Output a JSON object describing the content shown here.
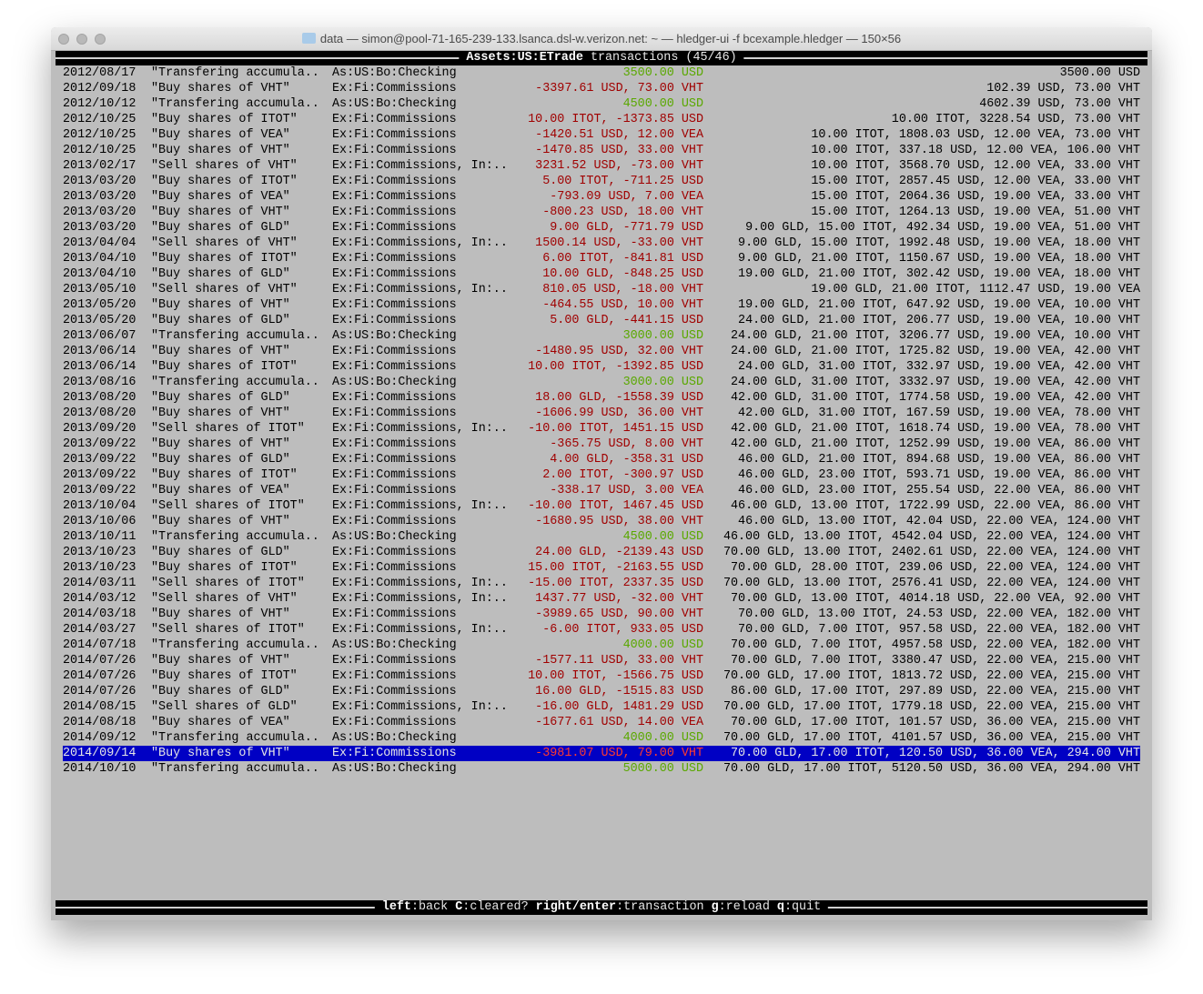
{
  "window": {
    "title": "data — simon@pool-71-165-239-133.lsanca.dsl-w.verizon.net: ~ — hledger-ui -f bcexample.hledger — 150×56"
  },
  "header": {
    "account": "Assets:US:ETrade",
    "suffix": " transactions (45/46)"
  },
  "colors": {
    "positive": "#5aa800",
    "negative": "#a00000",
    "selected_bg": "#0000c4",
    "selected_negative": "#ff3b2f",
    "background": "#bdbdbd"
  },
  "selected_index": 44,
  "columns": [
    "date",
    "description",
    "account",
    "amount",
    "balance"
  ],
  "rows": [
    [
      "2012/08/17",
      "\"Transfering accumula..",
      "As:US:Bo:Checking",
      "3500.00 USD",
      "3500.00 USD"
    ],
    [
      "2012/09/18",
      "\"Buy shares of VHT\"",
      "Ex:Fi:Commissions",
      "-3397.61 USD, 73.00 VHT",
      "102.39 USD, 73.00 VHT"
    ],
    [
      "2012/10/12",
      "\"Transfering accumula..",
      "As:US:Bo:Checking",
      "4500.00 USD",
      "4602.39 USD, 73.00 VHT"
    ],
    [
      "2012/10/25",
      "\"Buy shares of ITOT\"",
      "Ex:Fi:Commissions",
      "10.00 ITOT, -1373.85 USD",
      "10.00 ITOT, 3228.54 USD, 73.00 VHT"
    ],
    [
      "2012/10/25",
      "\"Buy shares of VEA\"",
      "Ex:Fi:Commissions",
      "-1420.51 USD, 12.00 VEA",
      "10.00 ITOT, 1808.03 USD, 12.00 VEA, 73.00 VHT"
    ],
    [
      "2012/10/25",
      "\"Buy shares of VHT\"",
      "Ex:Fi:Commissions",
      "-1470.85 USD, 33.00 VHT",
      "10.00 ITOT, 337.18 USD, 12.00 VEA, 106.00 VHT"
    ],
    [
      "2013/02/17",
      "\"Sell shares of VHT\"",
      "Ex:Fi:Commissions, In:..",
      "3231.52 USD, -73.00 VHT",
      "10.00 ITOT, 3568.70 USD, 12.00 VEA, 33.00 VHT"
    ],
    [
      "2013/03/20",
      "\"Buy shares of ITOT\"",
      "Ex:Fi:Commissions",
      "5.00 ITOT, -711.25 USD",
      "15.00 ITOT, 2857.45 USD, 12.00 VEA, 33.00 VHT"
    ],
    [
      "2013/03/20",
      "\"Buy shares of VEA\"",
      "Ex:Fi:Commissions",
      "-793.09 USD, 7.00 VEA",
      "15.00 ITOT, 2064.36 USD, 19.00 VEA, 33.00 VHT"
    ],
    [
      "2013/03/20",
      "\"Buy shares of VHT\"",
      "Ex:Fi:Commissions",
      "-800.23 USD, 18.00 VHT",
      "15.00 ITOT, 1264.13 USD, 19.00 VEA, 51.00 VHT"
    ],
    [
      "2013/03/20",
      "\"Buy shares of GLD\"",
      "Ex:Fi:Commissions",
      "9.00 GLD, -771.79 USD",
      "9.00 GLD, 15.00 ITOT, 492.34 USD, 19.00 VEA, 51.00 VHT"
    ],
    [
      "2013/04/04",
      "\"Sell shares of VHT\"",
      "Ex:Fi:Commissions, In:..",
      "1500.14 USD, -33.00 VHT",
      "9.00 GLD, 15.00 ITOT, 1992.48 USD, 19.00 VEA, 18.00 VHT"
    ],
    [
      "2013/04/10",
      "\"Buy shares of ITOT\"",
      "Ex:Fi:Commissions",
      "6.00 ITOT, -841.81 USD",
      "9.00 GLD, 21.00 ITOT, 1150.67 USD, 19.00 VEA, 18.00 VHT"
    ],
    [
      "2013/04/10",
      "\"Buy shares of GLD\"",
      "Ex:Fi:Commissions",
      "10.00 GLD, -848.25 USD",
      "19.00 GLD, 21.00 ITOT, 302.42 USD, 19.00 VEA, 18.00 VHT"
    ],
    [
      "2013/05/10",
      "\"Sell shares of VHT\"",
      "Ex:Fi:Commissions, In:..",
      "810.05 USD, -18.00 VHT",
      "19.00 GLD, 21.00 ITOT, 1112.47 USD, 19.00 VEA"
    ],
    [
      "2013/05/20",
      "\"Buy shares of VHT\"",
      "Ex:Fi:Commissions",
      "-464.55 USD, 10.00 VHT",
      "19.00 GLD, 21.00 ITOT, 647.92 USD, 19.00 VEA, 10.00 VHT"
    ],
    [
      "2013/05/20",
      "\"Buy shares of GLD\"",
      "Ex:Fi:Commissions",
      "5.00 GLD, -441.15 USD",
      "24.00 GLD, 21.00 ITOT, 206.77 USD, 19.00 VEA, 10.00 VHT"
    ],
    [
      "2013/06/07",
      "\"Transfering accumula..",
      "As:US:Bo:Checking",
      "3000.00 USD",
      "24.00 GLD, 21.00 ITOT, 3206.77 USD, 19.00 VEA, 10.00 VHT"
    ],
    [
      "2013/06/14",
      "\"Buy shares of VHT\"",
      "Ex:Fi:Commissions",
      "-1480.95 USD, 32.00 VHT",
      "24.00 GLD, 21.00 ITOT, 1725.82 USD, 19.00 VEA, 42.00 VHT"
    ],
    [
      "2013/06/14",
      "\"Buy shares of ITOT\"",
      "Ex:Fi:Commissions",
      "10.00 ITOT, -1392.85 USD",
      "24.00 GLD, 31.00 ITOT, 332.97 USD, 19.00 VEA, 42.00 VHT"
    ],
    [
      "2013/08/16",
      "\"Transfering accumula..",
      "As:US:Bo:Checking",
      "3000.00 USD",
      "24.00 GLD, 31.00 ITOT, 3332.97 USD, 19.00 VEA, 42.00 VHT"
    ],
    [
      "2013/08/20",
      "\"Buy shares of GLD\"",
      "Ex:Fi:Commissions",
      "18.00 GLD, -1558.39 USD",
      "42.00 GLD, 31.00 ITOT, 1774.58 USD, 19.00 VEA, 42.00 VHT"
    ],
    [
      "2013/08/20",
      "\"Buy shares of VHT\"",
      "Ex:Fi:Commissions",
      "-1606.99 USD, 36.00 VHT",
      "42.00 GLD, 31.00 ITOT, 167.59 USD, 19.00 VEA, 78.00 VHT"
    ],
    [
      "2013/09/20",
      "\"Sell shares of ITOT\"",
      "Ex:Fi:Commissions, In:..",
      "-10.00 ITOT, 1451.15 USD",
      "42.00 GLD, 21.00 ITOT, 1618.74 USD, 19.00 VEA, 78.00 VHT"
    ],
    [
      "2013/09/22",
      "\"Buy shares of VHT\"",
      "Ex:Fi:Commissions",
      "-365.75 USD, 8.00 VHT",
      "42.00 GLD, 21.00 ITOT, 1252.99 USD, 19.00 VEA, 86.00 VHT"
    ],
    [
      "2013/09/22",
      "\"Buy shares of GLD\"",
      "Ex:Fi:Commissions",
      "4.00 GLD, -358.31 USD",
      "46.00 GLD, 21.00 ITOT, 894.68 USD, 19.00 VEA, 86.00 VHT"
    ],
    [
      "2013/09/22",
      "\"Buy shares of ITOT\"",
      "Ex:Fi:Commissions",
      "2.00 ITOT, -300.97 USD",
      "46.00 GLD, 23.00 ITOT, 593.71 USD, 19.00 VEA, 86.00 VHT"
    ],
    [
      "2013/09/22",
      "\"Buy shares of VEA\"",
      "Ex:Fi:Commissions",
      "-338.17 USD, 3.00 VEA",
      "46.00 GLD, 23.00 ITOT, 255.54 USD, 22.00 VEA, 86.00 VHT"
    ],
    [
      "2013/10/04",
      "\"Sell shares of ITOT\"",
      "Ex:Fi:Commissions, In:..",
      "-10.00 ITOT, 1467.45 USD",
      "46.00 GLD, 13.00 ITOT, 1722.99 USD, 22.00 VEA, 86.00 VHT"
    ],
    [
      "2013/10/06",
      "\"Buy shares of VHT\"",
      "Ex:Fi:Commissions",
      "-1680.95 USD, 38.00 VHT",
      "46.00 GLD, 13.00 ITOT, 42.04 USD, 22.00 VEA, 124.00 VHT"
    ],
    [
      "2013/10/11",
      "\"Transfering accumula..",
      "As:US:Bo:Checking",
      "4500.00 USD",
      "46.00 GLD, 13.00 ITOT, 4542.04 USD, 22.00 VEA, 124.00 VHT"
    ],
    [
      "2013/10/23",
      "\"Buy shares of GLD\"",
      "Ex:Fi:Commissions",
      "24.00 GLD, -2139.43 USD",
      "70.00 GLD, 13.00 ITOT, 2402.61 USD, 22.00 VEA, 124.00 VHT"
    ],
    [
      "2013/10/23",
      "\"Buy shares of ITOT\"",
      "Ex:Fi:Commissions",
      "15.00 ITOT, -2163.55 USD",
      "70.00 GLD, 28.00 ITOT, 239.06 USD, 22.00 VEA, 124.00 VHT"
    ],
    [
      "2014/03/11",
      "\"Sell shares of ITOT\"",
      "Ex:Fi:Commissions, In:..",
      "-15.00 ITOT, 2337.35 USD",
      "70.00 GLD, 13.00 ITOT, 2576.41 USD, 22.00 VEA, 124.00 VHT"
    ],
    [
      "2014/03/12",
      "\"Sell shares of VHT\"",
      "Ex:Fi:Commissions, In:..",
      "1437.77 USD, -32.00 VHT",
      "70.00 GLD, 13.00 ITOT, 4014.18 USD, 22.00 VEA, 92.00 VHT"
    ],
    [
      "2014/03/18",
      "\"Buy shares of VHT\"",
      "Ex:Fi:Commissions",
      "-3989.65 USD, 90.00 VHT",
      "70.00 GLD, 13.00 ITOT, 24.53 USD, 22.00 VEA, 182.00 VHT"
    ],
    [
      "2014/03/27",
      "\"Sell shares of ITOT\"",
      "Ex:Fi:Commissions, In:..",
      "-6.00 ITOT, 933.05 USD",
      "70.00 GLD, 7.00 ITOT, 957.58 USD, 22.00 VEA, 182.00 VHT"
    ],
    [
      "2014/07/18",
      "\"Transfering accumula..",
      "As:US:Bo:Checking",
      "4000.00 USD",
      "70.00 GLD, 7.00 ITOT, 4957.58 USD, 22.00 VEA, 182.00 VHT"
    ],
    [
      "2014/07/26",
      "\"Buy shares of VHT\"",
      "Ex:Fi:Commissions",
      "-1577.11 USD, 33.00 VHT",
      "70.00 GLD, 7.00 ITOT, 3380.47 USD, 22.00 VEA, 215.00 VHT"
    ],
    [
      "2014/07/26",
      "\"Buy shares of ITOT\"",
      "Ex:Fi:Commissions",
      "10.00 ITOT, -1566.75 USD",
      "70.00 GLD, 17.00 ITOT, 1813.72 USD, 22.00 VEA, 215.00 VHT"
    ],
    [
      "2014/07/26",
      "\"Buy shares of GLD\"",
      "Ex:Fi:Commissions",
      "16.00 GLD, -1515.83 USD",
      "86.00 GLD, 17.00 ITOT, 297.89 USD, 22.00 VEA, 215.00 VHT"
    ],
    [
      "2014/08/15",
      "\"Sell shares of GLD\"",
      "Ex:Fi:Commissions, In:..",
      "-16.00 GLD, 1481.29 USD",
      "70.00 GLD, 17.00 ITOT, 1779.18 USD, 22.00 VEA, 215.00 VHT"
    ],
    [
      "2014/08/18",
      "\"Buy shares of VEA\"",
      "Ex:Fi:Commissions",
      "-1677.61 USD, 14.00 VEA",
      "70.00 GLD, 17.00 ITOT, 101.57 USD, 36.00 VEA, 215.00 VHT"
    ],
    [
      "2014/09/12",
      "\"Transfering accumula..",
      "As:US:Bo:Checking",
      "4000.00 USD",
      "70.00 GLD, 17.00 ITOT, 4101.57 USD, 36.00 VEA, 215.00 VHT"
    ],
    [
      "2014/09/14",
      "\"Buy shares of VHT\"",
      "Ex:Fi:Commissions",
      "-3981.07 USD, 79.00 VHT",
      "70.00 GLD, 17.00 ITOT, 120.50 USD, 36.00 VEA, 294.00 VHT"
    ],
    [
      "2014/10/10",
      "\"Transfering accumula..",
      "As:US:Bo:Checking",
      "5000.00 USD",
      "70.00 GLD, 17.00 ITOT, 5120.50 USD, 36.00 VEA, 294.00 VHT"
    ]
  ],
  "footer": {
    "keys": [
      {
        "key": "left",
        "action": "back"
      },
      {
        "key": "C",
        "action": "cleared?"
      },
      {
        "key": "right/enter",
        "action": "transaction"
      },
      {
        "key": "g",
        "action": "reload"
      },
      {
        "key": "q",
        "action": "quit"
      }
    ]
  }
}
